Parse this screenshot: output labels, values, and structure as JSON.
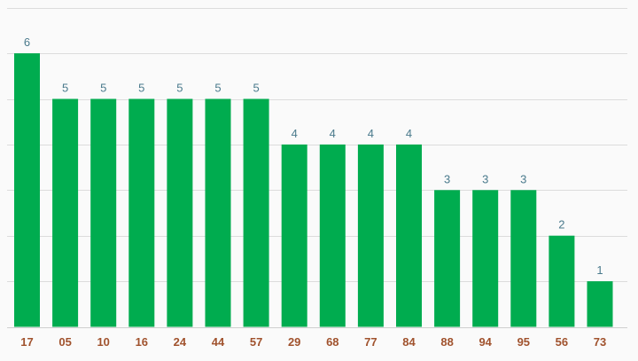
{
  "chart_data": {
    "type": "bar",
    "categories": [
      "17",
      "05",
      "10",
      "16",
      "24",
      "44",
      "57",
      "29",
      "68",
      "77",
      "84",
      "88",
      "94",
      "95",
      "56",
      "73"
    ],
    "values": [
      6,
      5,
      5,
      5,
      5,
      5,
      5,
      4,
      4,
      4,
      4,
      3,
      3,
      3,
      2,
      1
    ],
    "ylim": [
      0,
      7
    ],
    "grid": true,
    "legend": "none",
    "data_labels": true,
    "colors": {
      "bar": "#00ac4f",
      "value_label": "#4a7a8c",
      "category_label": "#a0522d",
      "grid": "#dcdcdc"
    }
  }
}
